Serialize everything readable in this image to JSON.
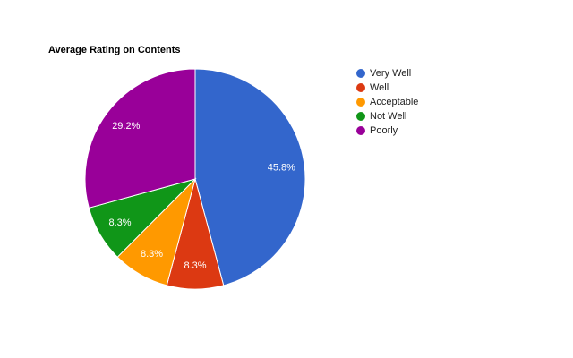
{
  "chart_data": {
    "type": "pie",
    "title": "Average Rating on Contents",
    "categories": [
      "Very Well",
      "Well",
      "Acceptable",
      "Not Well",
      "Poorly"
    ],
    "values": [
      45.8,
      8.3,
      8.3,
      8.3,
      29.2
    ],
    "value_labels": [
      "45.8%",
      "8.3%",
      "8.3%",
      "8.3%",
      "29.2%"
    ],
    "colors": [
      "#3366cc",
      "#dc3912",
      "#ff9900",
      "#109618",
      "#990099"
    ],
    "legend": "right"
  }
}
